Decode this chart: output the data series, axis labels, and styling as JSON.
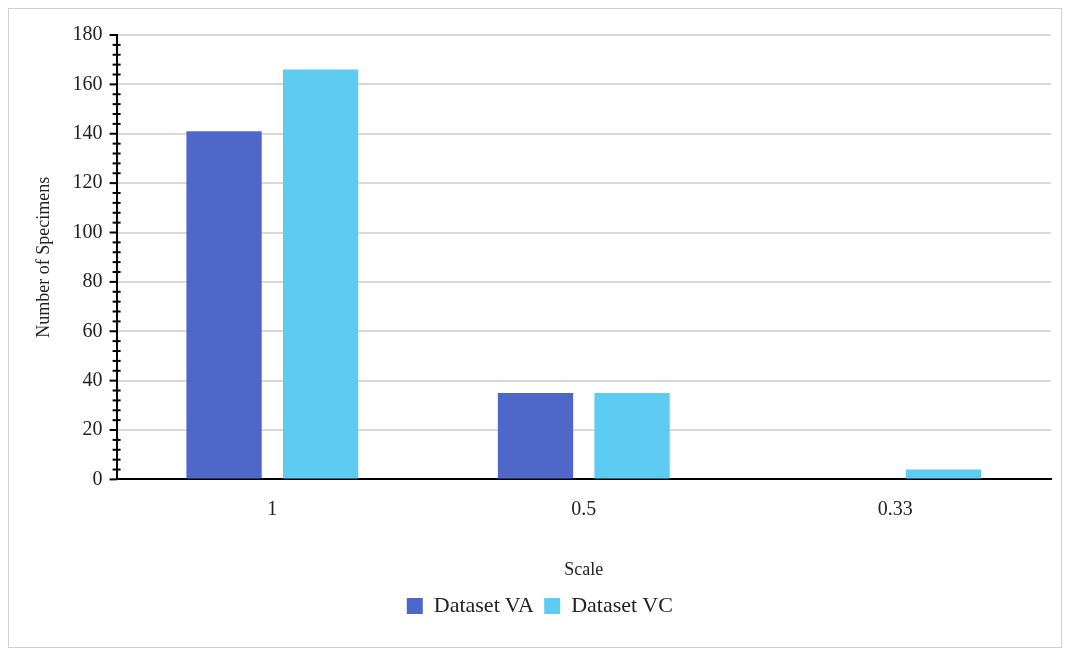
{
  "chart_data": {
    "type": "bar",
    "xlabel": "Scale",
    "ylabel": "Number of Specimens",
    "categories": [
      "1",
      "0.5",
      "0.33"
    ],
    "series": [
      {
        "name": "Dataset VA",
        "color": "#4f67c8",
        "values": [
          141,
          35,
          0
        ]
      },
      {
        "name": "Dataset VC",
        "color": "#5ecbf2",
        "values": [
          166,
          35,
          4
        ]
      }
    ],
    "ylim": [
      0,
      180
    ],
    "yticks": [
      0,
      {
        "value": 4,
        "label": null
      },
      {
        "value": 8,
        "label": null
      },
      {
        "value": 12,
        "label": null
      },
      {
        "value": 16,
        "label": null
      },
      20,
      {
        "value": 24,
        "label": null
      },
      {
        "value": 28,
        "label": null
      },
      {
        "value": 32,
        "label": null
      },
      {
        "value": 36,
        "label": null
      },
      40,
      {
        "value": 44,
        "label": null
      },
      {
        "value": 48,
        "label": null
      },
      {
        "value": 52,
        "label": null
      },
      {
        "value": 56,
        "label": null
      },
      60,
      {
        "value": 64,
        "label": null
      },
      {
        "value": 68,
        "label": null
      },
      {
        "value": 72,
        "label": null
      },
      {
        "value": 76,
        "label": null
      },
      80,
      {
        "value": 84,
        "label": null
      },
      {
        "value": 88,
        "label": null
      },
      {
        "value": 92,
        "label": null
      },
      {
        "value": 96,
        "label": null
      },
      100,
      {
        "value": 104,
        "label": null
      },
      {
        "value": 108,
        "label": null
      },
      {
        "value": 112,
        "label": null
      },
      {
        "value": 116,
        "label": null
      },
      120,
      {
        "value": 124,
        "label": null
      },
      {
        "value": 128,
        "label": null
      },
      {
        "value": 132,
        "label": null
      },
      {
        "value": 136,
        "label": null
      },
      140,
      {
        "value": 144,
        "label": null
      },
      {
        "value": 148,
        "label": null
      },
      {
        "value": 152,
        "label": null
      },
      {
        "value": 156,
        "label": null
      },
      160,
      {
        "value": 164,
        "label": null
      },
      {
        "value": 168,
        "label": null
      },
      {
        "value": 172,
        "label": null
      },
      {
        "value": 176,
        "label": null
      },
      180
    ],
    "grid": "y",
    "legend": "bottom"
  }
}
